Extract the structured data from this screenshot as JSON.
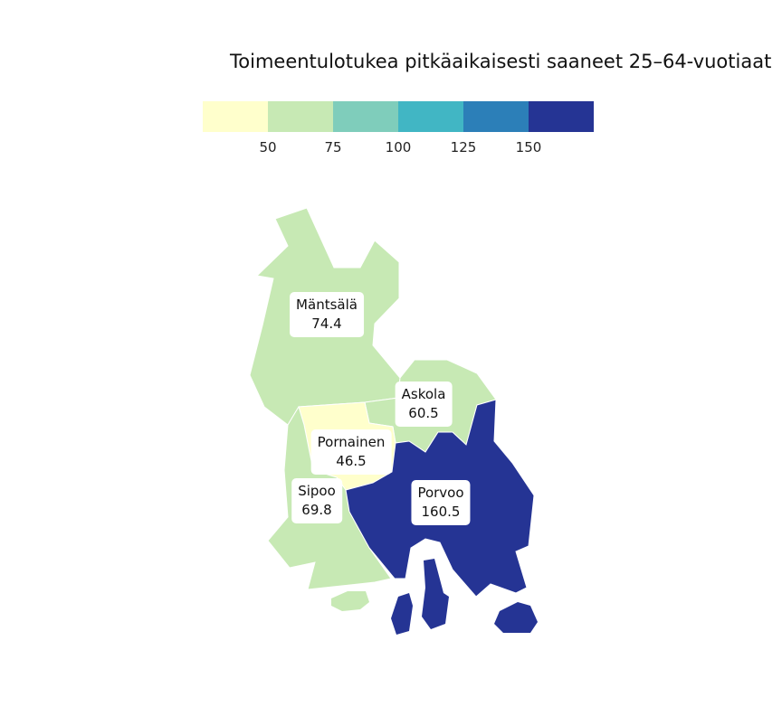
{
  "title": "Toimeentulotukea pitkäaikaisesti saaneet 25–64-vuotiaat",
  "legend": {
    "colors": [
      "#ffffcc",
      "#c7e9b4",
      "#7fcdbb",
      "#41b6c4",
      "#2c7fb8",
      "#253494"
    ],
    "ticks": [
      "50",
      "75",
      "100",
      "125",
      "150"
    ]
  },
  "regions": [
    {
      "name": "Mäntsälä",
      "value": "74.4",
      "color": "#c7e9b4"
    },
    {
      "name": "Askola",
      "value": "60.5",
      "color": "#c7e9b4"
    },
    {
      "name": "Pornainen",
      "value": "46.5",
      "color": "#ffffcc"
    },
    {
      "name": "Sipoo",
      "value": "69.8",
      "color": "#c7e9b4"
    },
    {
      "name": "Porvoo",
      "value": "160.5",
      "color": "#253494"
    }
  ]
}
